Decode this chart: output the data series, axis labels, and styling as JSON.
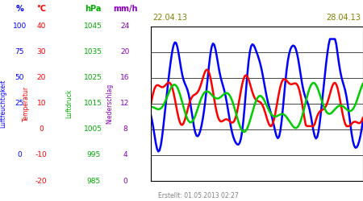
{
  "title_left": "22.04.13",
  "title_right": "28.04.13",
  "footer": "Erstellt: 01.05.2013 02:27",
  "ylabel_left1": "Luftfeuchtigkeit",
  "ylabel_left2": "Temperatur",
  "ylabel_left3": "Luftdruck",
  "ylabel_left4": "Niederschlag",
  "unit_pct": "%",
  "unit_c": "°C",
  "unit_hpa": "hPa",
  "unit_mmh": "mm/h",
  "color_blue": "#0000ff",
  "color_red": "#ff0000",
  "color_green": "#00cc00",
  "color_purple": "#8800bb",
  "color_date": "#808000",
  "color_footer": "#808080",
  "color_green_label": "#00aa00",
  "pct_vals": [
    100,
    75,
    50,
    25,
    null,
    0,
    null
  ],
  "temp_vals": [
    40,
    30,
    20,
    10,
    0,
    -10,
    -20
  ],
  "hpa_vals": [
    1045,
    1035,
    1025,
    1015,
    1005,
    995,
    985
  ],
  "mmh_vals": [
    24,
    20,
    16,
    12,
    8,
    4,
    0
  ],
  "ylim": [
    0,
    24
  ],
  "xlim": [
    0,
    7
  ],
  "fig_width": 4.5,
  "fig_height": 2.5,
  "dpi": 100
}
